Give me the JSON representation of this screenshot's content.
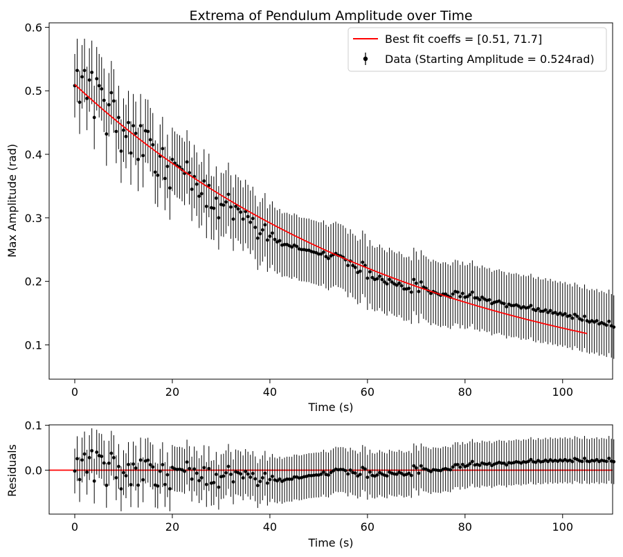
{
  "figure": {
    "background": "#ffffff"
  },
  "chart_data": [
    {
      "id": "main",
      "type": "scatter",
      "title": "Extrema of Pendulum Amplitude over Time",
      "xlabel": "Time (s)",
      "ylabel": "Max Amplitude (rad)",
      "xlim": [
        -5.25,
        110.25
      ],
      "ylim": [
        0.046,
        0.607
      ],
      "xticks": [
        0,
        20,
        40,
        60,
        80,
        100
      ],
      "xtick_labels": [
        "0",
        "20",
        "40",
        "60",
        "80",
        "100"
      ],
      "yticks": [
        0.1,
        0.2,
        0.3,
        0.4,
        0.5,
        0.6
      ],
      "ytick_labels": [
        "0.1",
        "0.2",
        "0.3",
        "0.4",
        "0.5",
        "0.6"
      ],
      "legend_position": "top-right",
      "grid": false,
      "series": [
        {
          "name": "Data (Starting Amplitude = 0.524rad)",
          "kind": "errorbar-points",
          "color": "#000000",
          "x_start": 0,
          "x_step": 0.5,
          "yerr": 0.05,
          "values": [
            0.508,
            0.532,
            0.482,
            0.522,
            0.532,
            0.488,
            0.517,
            0.529,
            0.458,
            0.519,
            0.508,
            0.503,
            0.485,
            0.432,
            0.478,
            0.497,
            0.484,
            0.436,
            0.458,
            0.405,
            0.438,
            0.428,
            0.45,
            0.402,
            0.445,
            0.433,
            0.392,
            0.445,
            0.398,
            0.437,
            0.436,
            0.423,
            0.415,
            0.372,
            0.367,
            0.397,
            0.409,
            0.362,
            0.381,
            0.347,
            0.392,
            0.386,
            0.382,
            0.38,
            0.376,
            0.37,
            0.388,
            0.371,
            0.345,
            0.365,
            0.353,
            0.334,
            0.338,
            0.358,
            0.318,
            0.351,
            0.316,
            0.315,
            0.331,
            0.3,
            0.321,
            0.32,
            0.325,
            0.337,
            0.317,
            0.298,
            0.318,
            0.314,
            0.309,
            0.298,
            0.31,
            0.302,
            0.293,
            0.299,
            0.285,
            0.268,
            0.275,
            0.281,
            0.289,
            0.265,
            0.271,
            0.276,
            0.266,
            0.262,
            0.264,
            0.257,
            0.258,
            0.258,
            0.256,
            0.254,
            0.257,
            0.255,
            0.251,
            0.25,
            0.25,
            0.249,
            0.249,
            0.247,
            0.246,
            0.245,
            0.243,
            0.243,
            0.246,
            0.239,
            0.236,
            0.24,
            0.242,
            0.244,
            0.241,
            0.24,
            0.238,
            0.234,
            0.225,
            0.232,
            0.225,
            0.222,
            0.214,
            0.216,
            0.23,
            0.225,
            0.205,
            0.215,
            0.206,
            0.203,
            0.204,
            0.208,
            0.203,
            0.199,
            0.196,
            0.203,
            0.199,
            0.196,
            0.194,
            0.197,
            0.193,
            0.188,
            0.188,
            0.189,
            0.183,
            0.203,
            0.197,
            0.184,
            0.199,
            0.191,
            0.189,
            0.185,
            0.181,
            0.184,
            0.182,
            0.18,
            0.178,
            0.18,
            0.18,
            0.177,
            0.175,
            0.18,
            0.184,
            0.183,
            0.176,
            0.181,
            0.175,
            0.176,
            0.179,
            0.183,
            0.174,
            0.174,
            0.171,
            0.175,
            0.172,
            0.17,
            0.171,
            0.165,
            0.167,
            0.168,
            0.169,
            0.166,
            0.165,
            0.16,
            0.164,
            0.162,
            0.162,
            0.163,
            0.161,
            0.158,
            0.16,
            0.158,
            0.159,
            0.162,
            0.156,
            0.154,
            0.157,
            0.153,
            0.153,
            0.155,
            0.151,
            0.154,
            0.15,
            0.151,
            0.148,
            0.15,
            0.147,
            0.149,
            0.145,
            0.146,
            0.142,
            0.148,
            0.145,
            0.141,
            0.139,
            0.145,
            0.138,
            0.136,
            0.138,
            0.136,
            0.138,
            0.133,
            0.135,
            0.133,
            0.131,
            0.137,
            0.13,
            0.128
          ]
        },
        {
          "name": "Best fit coeffs = [0.51, 71.7]",
          "kind": "fit-curve",
          "color": "#ff0000",
          "model": "A * exp(-t / tau)",
          "coeffs": [
            0.51,
            71.7
          ],
          "x_range": [
            0,
            105
          ]
        }
      ]
    },
    {
      "id": "residuals",
      "type": "scatter",
      "xlabel": "Time (s)",
      "ylabel": "Residuals",
      "xlim": [
        -5.25,
        110.25
      ],
      "ylim": [
        -0.098,
        0.101
      ],
      "xticks": [
        0,
        20,
        40,
        60,
        80,
        100
      ],
      "xtick_labels": [
        "0",
        "20",
        "40",
        "60",
        "80",
        "100"
      ],
      "yticks": [
        0.0,
        0.1
      ],
      "ytick_labels": [
        "0.0",
        "0.1"
      ],
      "grid": false,
      "series": [
        {
          "name": "",
          "kind": "errorbar-points",
          "color": "#000000",
          "derived_from": "data minus fit"
        },
        {
          "name": "",
          "kind": "zero-line",
          "color": "#ff0000",
          "value": 0.0
        }
      ]
    }
  ]
}
